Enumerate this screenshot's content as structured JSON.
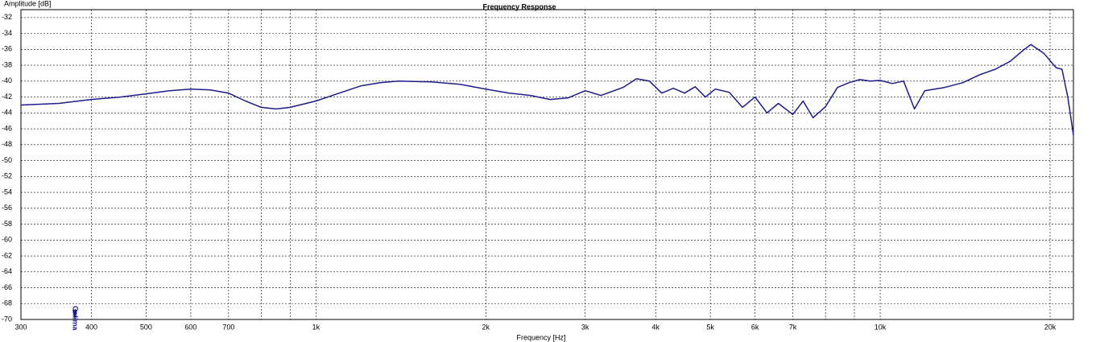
{
  "chart_data": {
    "type": "line",
    "title": "Frequency Response",
    "y_label": "Amplitude [dB]",
    "x_label": "Frequency [Hz]",
    "annotation": "Gatima",
    "x_scale": "log",
    "grid": true,
    "xlim": [
      300,
      22000
    ],
    "ylim": [
      -70,
      -31
    ],
    "xticks": [
      300,
      400,
      500,
      600,
      700,
      {
        "value": 1000,
        "label": "1k"
      },
      {
        "value": 2000,
        "label": "2k"
      },
      {
        "value": 3000,
        "label": "3k"
      },
      {
        "value": 4000,
        "label": "4k"
      },
      {
        "value": 5000,
        "label": "5k"
      },
      {
        "value": 6000,
        "label": "6k"
      },
      {
        "value": 7000,
        "label": "7k"
      },
      {
        "value": 10000,
        "label": "10k"
      },
      {
        "value": 20000,
        "label": "20k"
      }
    ],
    "minor_xticks": [
      800,
      900,
      8000,
      9000
    ],
    "yticks": [
      -70,
      -68,
      -66,
      -64,
      -62,
      -60,
      -58,
      -56,
      -54,
      -52,
      -50,
      -48,
      -46,
      -44,
      -42,
      -40,
      -38,
      -36,
      -34,
      -32
    ],
    "x": [
      300,
      350,
      400,
      450,
      500,
      550,
      600,
      650,
      700,
      750,
      800,
      850,
      900,
      1000,
      1100,
      1200,
      1300,
      1400,
      1600,
      1800,
      2000,
      2200,
      2400,
      2600,
      2800,
      3000,
      3200,
      3500,
      3700,
      3900,
      4100,
      4300,
      4500,
      4700,
      4900,
      5100,
      5400,
      5700,
      6000,
      6300,
      6600,
      7000,
      7300,
      7600,
      8000,
      8400,
      8800,
      9200,
      9600,
      10000,
      10500,
      11000,
      11500,
      12000,
      13000,
      14000,
      15000,
      16000,
      17000,
      18000,
      18500,
      19500,
      20500,
      21000,
      21500,
      22000
    ],
    "series": [
      {
        "color": "#1c1c8a",
        "values": [
          -43.0,
          -42.8,
          -42.3,
          -42.0,
          -41.6,
          -41.2,
          -41.0,
          -41.1,
          -41.5,
          -42.5,
          -43.3,
          -43.5,
          -43.3,
          -42.5,
          -41.5,
          -40.6,
          -40.2,
          -40.0,
          -40.1,
          -40.4,
          -41.0,
          -41.5,
          -41.8,
          -42.3,
          -42.1,
          -41.2,
          -41.8,
          -40.8,
          -39.7,
          -40.0,
          -41.5,
          -40.9,
          -41.5,
          -40.7,
          -42.0,
          -41.0,
          -41.4,
          -43.3,
          -42.0,
          -44.0,
          -42.8,
          -44.2,
          -42.5,
          -44.6,
          -43.2,
          -40.8,
          -40.2,
          -39.8,
          -40.0,
          -39.9,
          -40.3,
          -40.0,
          -43.5,
          -41.2,
          -40.8,
          -40.2,
          -39.2,
          -38.5,
          -37.5,
          -36.0,
          -35.4,
          -36.5,
          -38.3,
          -38.5,
          -42.0,
          -46.8
        ]
      }
    ]
  }
}
